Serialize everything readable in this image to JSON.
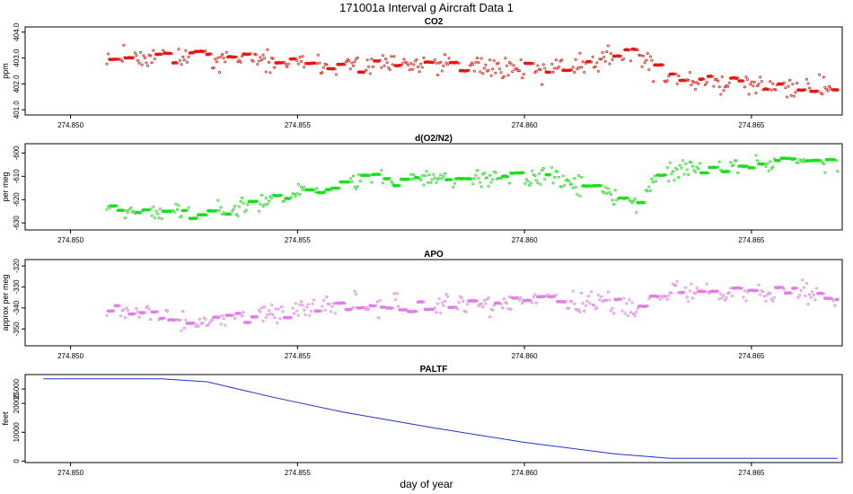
{
  "page_title": "171001a   Interval g Aircraft Data 1",
  "x_axis_label": "day of year",
  "chart_data": [
    {
      "type": "scatter",
      "title": "CO2",
      "ylabel": "ppm",
      "color": "#e8150e",
      "xlim": [
        274.849,
        274.867
      ],
      "ylim": [
        400.8,
        404.2
      ],
      "x_ticks": [
        "274.850",
        "274.855",
        "274.860",
        "274.865"
      ],
      "x_tick_values": [
        274.85,
        274.855,
        274.86,
        274.865
      ],
      "y_ticks": [
        "401.0",
        "402.0",
        "403.0",
        "404.0"
      ],
      "y_tick_values": [
        401.0,
        402.0,
        403.0,
        404.0
      ],
      "x_range": [
        274.8508,
        274.8669
      ],
      "trend_x": [
        274.8508,
        274.853,
        274.856,
        274.859,
        274.8605,
        274.8625,
        274.863,
        274.865,
        274.8669
      ],
      "trend_y": [
        403.1,
        403.0,
        402.7,
        402.7,
        402.5,
        403.3,
        402.2,
        401.9,
        401.9
      ],
      "noise": 0.32,
      "seed": 11
    },
    {
      "type": "scatter",
      "title": "d(O2/N2)",
      "ylabel": "per meg",
      "color": "#19e019",
      "xlim": [
        274.849,
        274.867
      ],
      "ylim": [
        -633,
        -596
      ],
      "x_ticks": [
        "274.850",
        "274.855",
        "274.860",
        "274.865"
      ],
      "x_tick_values": [
        274.85,
        274.855,
        274.86,
        274.865
      ],
      "y_ticks": [
        "-630",
        "-620",
        "-610",
        "-600"
      ],
      "y_tick_values": [
        -630,
        -620,
        -610,
        -600
      ],
      "x_range": [
        274.8508,
        274.8669
      ],
      "trend_x": [
        274.8508,
        274.853,
        274.856,
        274.859,
        274.8605,
        274.8625,
        274.863,
        274.865,
        274.8669
      ],
      "trend_y": [
        -624,
        -626,
        -612,
        -611,
        -610,
        -622,
        -608,
        -605,
        -604
      ],
      "noise": 3.2,
      "seed": 23
    },
    {
      "type": "scatter",
      "title": "APO",
      "ylabel": "approx per meg",
      "color": "#e27de8",
      "xlim": [
        274.849,
        274.867
      ],
      "ylim": [
        -358,
        -317
      ],
      "x_ticks": [
        "274.850",
        "274.855",
        "274.860",
        "274.865"
      ],
      "x_tick_values": [
        274.85,
        274.855,
        274.86,
        274.865
      ],
      "y_ticks": [
        "-350",
        "-340",
        "-330",
        "-320"
      ],
      "y_tick_values": [
        -350,
        -340,
        -330,
        -320
      ],
      "x_range": [
        274.8508,
        274.8669
      ],
      "trend_x": [
        274.8508,
        274.853,
        274.856,
        274.859,
        274.8605,
        274.8625,
        274.863,
        274.865,
        274.8669
      ],
      "trend_y": [
        -340,
        -347,
        -338,
        -339,
        -336,
        -340,
        -332,
        -333,
        -333
      ],
      "noise": 4.0,
      "seed": 37
    },
    {
      "type": "line",
      "title": "PALTF",
      "ylabel": "feet",
      "color": "#2233cc",
      "xlim": [
        274.849,
        274.867
      ],
      "ylim": [
        -500,
        30000
      ],
      "x_ticks": [
        "274.850",
        "274.855",
        "274.860",
        "274.865"
      ],
      "x_tick_values": [
        274.85,
        274.855,
        274.86,
        274.865
      ],
      "y_ticks": [
        "0",
        "10000",
        "20000",
        "25000"
      ],
      "y_tick_values": [
        0,
        10000,
        20000,
        25000
      ],
      "x": [
        274.8494,
        274.852,
        274.853,
        274.8545,
        274.856,
        274.858,
        274.86,
        274.862,
        274.8632,
        274.8645,
        274.8669
      ],
      "y": [
        28500,
        28500,
        27500,
        22000,
        17000,
        11500,
        6500,
        2500,
        1000,
        1000,
        1000
      ]
    }
  ]
}
